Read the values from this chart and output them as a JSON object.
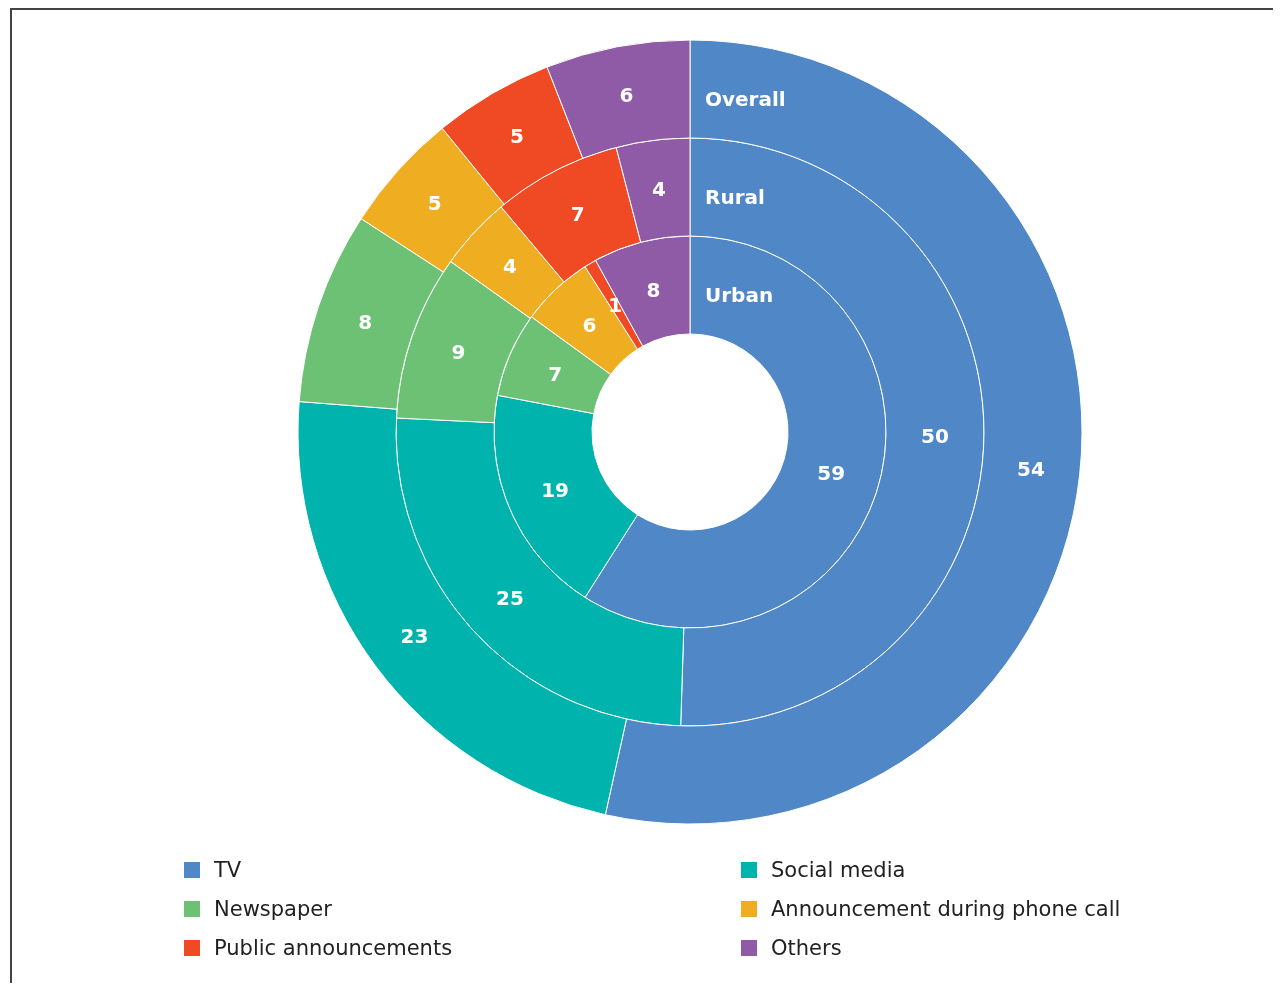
{
  "chart_data": {
    "type": "donut",
    "categories": [
      "TV",
      "Social media",
      "Newspaper",
      "Announcement during phone call",
      "Public announcements",
      "Others"
    ],
    "colors": [
      "#5087c6",
      "#00b4ad",
      "#6dc175",
      "#efae22",
      "#ef4a24",
      "#905ba6"
    ],
    "series": [
      {
        "name": "Urban",
        "values": [
          59,
          19,
          7,
          6,
          1,
          8
        ]
      },
      {
        "name": "Rural",
        "values": [
          50,
          25,
          9,
          4,
          7,
          4
        ]
      },
      {
        "name": "Overall",
        "values": [
          54,
          23,
          8,
          5,
          5,
          6
        ]
      }
    ],
    "data_labels": true,
    "legend": "bottom"
  }
}
